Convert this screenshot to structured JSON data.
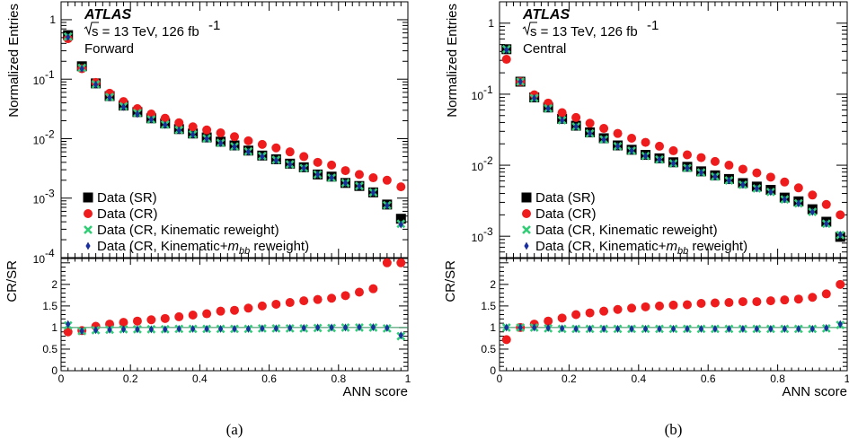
{
  "chart_data": [
    {
      "type": "scatter",
      "experiment": "ATLAS",
      "energy_label": "s = 13 TeV, 126 fb",
      "energy_sup": "-1",
      "region": "Forward",
      "caption": "(a)",
      "ylabel": "Normalized Entries",
      "ratio_ylabel": "CR/SR",
      "xlabel": "ANN score",
      "xlim": [
        0,
        1
      ],
      "ylim": [
        0.0001,
        2
      ],
      "ratio_ylim": [
        0,
        2.6
      ],
      "log_y": true,
      "legend_position": "bottom-left",
      "x_ticks": [
        "0",
        "0.2",
        "0.4",
        "0.6",
        "0.8",
        "1"
      ],
      "y_ticks": [
        "10",
        "10",
        "10",
        "10",
        "1"
      ],
      "y_tick_exps": [
        "-4",
        "-3",
        "-2",
        "-1",
        ""
      ],
      "ratio_ticks": [
        "0",
        "0.5",
        "1",
        "1.5",
        "2"
      ],
      "x": [
        0.02,
        0.06,
        0.1,
        0.14,
        0.18,
        0.22,
        0.26,
        0.3,
        0.34,
        0.38,
        0.42,
        0.46,
        0.5,
        0.54,
        0.58,
        0.62,
        0.66,
        0.7,
        0.74,
        0.78,
        0.82,
        0.86,
        0.9,
        0.94,
        0.98
      ],
      "series": [
        {
          "name": "Data (SR)",
          "marker": "square",
          "color": "#000000",
          "values": [
            0.55,
            0.165,
            0.085,
            0.052,
            0.036,
            0.028,
            0.022,
            0.018,
            0.0145,
            0.0122,
            0.0105,
            0.0089,
            0.0077,
            0.0063,
            0.0052,
            0.0045,
            0.0038,
            0.0033,
            0.0025,
            0.0023,
            0.0018,
            0.0016,
            0.00125,
            0.00078,
            0.00045
          ]
        },
        {
          "name": "Data (CR)",
          "marker": "circle",
          "color": "#ee1c1c",
          "values": [
            0.48,
            0.15,
            0.088,
            0.058,
            0.042,
            0.032,
            0.026,
            0.022,
            0.0185,
            0.0158,
            0.014,
            0.0125,
            0.0108,
            0.0092,
            0.008,
            0.007,
            0.006,
            0.005,
            0.004,
            0.0036,
            0.0029,
            0.0025,
            0.0022,
            0.002,
            0.00155
          ]
        },
        {
          "name": "Data (CR, Kinematic reweight)",
          "marker": "cross",
          "color": "#33cc77",
          "values": [
            0.52,
            0.155,
            0.082,
            0.05,
            0.035,
            0.027,
            0.021,
            0.0172,
            0.014,
            0.0118,
            0.0101,
            0.0085,
            0.0074,
            0.0061,
            0.0051,
            0.0044,
            0.0037,
            0.0032,
            0.0025,
            0.0022,
            0.0018,
            0.0016,
            0.00125,
            0.00076,
            0.00037
          ]
        },
        {
          "name": "Data (CR, Kinematic+",
          "name_math": "m",
          "name_sub": "bb",
          "name_tail": " reweight)",
          "marker": "diamond",
          "color": "#1a2f9e",
          "values": [
            0.51,
            0.15,
            0.081,
            0.049,
            0.034,
            0.026,
            0.021,
            0.017,
            0.0138,
            0.0117,
            0.01,
            0.0084,
            0.0073,
            0.006,
            0.005,
            0.0043,
            0.0037,
            0.0032,
            0.0025,
            0.0022,
            0.0018,
            0.0016,
            0.00124,
            0.00075,
            0.00036
          ]
        }
      ],
      "ratio_series": [
        {
          "name": "Data (CR)",
          "values": [
            0.9,
            0.93,
            1.03,
            1.08,
            1.12,
            1.15,
            1.18,
            1.21,
            1.25,
            1.29,
            1.32,
            1.38,
            1.4,
            1.45,
            1.5,
            1.54,
            1.58,
            1.62,
            1.65,
            1.68,
            1.74,
            1.82,
            1.9,
            2.5,
            2.5
          ]
        },
        {
          "name": "Data (CR, Kinematic reweight)",
          "values": [
            1.05,
            0.92,
            0.94,
            0.95,
            0.96,
            0.96,
            0.96,
            0.96,
            0.97,
            0.97,
            0.97,
            0.97,
            0.97,
            0.97,
            0.98,
            0.98,
            0.98,
            0.98,
            0.99,
            0.99,
            1.0,
            1.0,
            1.0,
            0.98,
            0.8
          ]
        },
        {
          "name": "Data (CR, Kinematic+mbb reweight)",
          "values": [
            1.08,
            0.92,
            0.94,
            0.95,
            0.96,
            0.96,
            0.96,
            0.96,
            0.97,
            0.97,
            0.97,
            0.97,
            0.97,
            0.97,
            0.98,
            0.98,
            0.99,
            0.99,
            1.0,
            1.0,
            1.0,
            1.01,
            1.01,
            0.99,
            0.82
          ]
        }
      ]
    },
    {
      "type": "scatter",
      "experiment": "ATLAS",
      "energy_label": "s = 13 TeV, 126 fb",
      "energy_sup": "-1",
      "region": "Central",
      "caption": "(b)",
      "ylabel": "Normalized Entries",
      "ratio_ylabel": "CR/SR",
      "xlabel": "ANN score",
      "xlim": [
        0,
        1
      ],
      "ylim": [
        0.0005,
        2
      ],
      "ratio_ylim": [
        0,
        2.6
      ],
      "log_y": true,
      "legend_position": "bottom-left",
      "x_ticks": [
        "0",
        "0.2",
        "0.4",
        "0.6",
        "0.8",
        "1"
      ],
      "y_ticks": [
        "10",
        "10",
        "10",
        "1"
      ],
      "y_tick_exps": [
        "-3",
        "-2",
        "-1",
        ""
      ],
      "ratio_ticks": [
        "0",
        "0.5",
        "1",
        "1.5",
        "2"
      ],
      "x": [
        0.02,
        0.06,
        0.1,
        0.14,
        0.18,
        0.22,
        0.26,
        0.3,
        0.34,
        0.38,
        0.42,
        0.46,
        0.5,
        0.54,
        0.58,
        0.62,
        0.66,
        0.7,
        0.74,
        0.78,
        0.82,
        0.86,
        0.9,
        0.94,
        0.98
      ],
      "series": [
        {
          "name": "Data (SR)",
          "marker": "square",
          "color": "#000000",
          "values": [
            0.43,
            0.15,
            0.09,
            0.065,
            0.045,
            0.036,
            0.029,
            0.024,
            0.019,
            0.0165,
            0.014,
            0.0125,
            0.011,
            0.0095,
            0.0082,
            0.0072,
            0.0064,
            0.0056,
            0.005,
            0.0045,
            0.0035,
            0.0031,
            0.0024,
            0.0016,
            0.00098
          ]
        },
        {
          "name": "Data (CR)",
          "marker": "circle",
          "color": "#ee1c1c",
          "values": [
            0.31,
            0.15,
            0.098,
            0.075,
            0.055,
            0.047,
            0.039,
            0.033,
            0.028,
            0.024,
            0.021,
            0.0185,
            0.016,
            0.014,
            0.0128,
            0.0113,
            0.01,
            0.0088,
            0.0078,
            0.0068,
            0.0058,
            0.0048,
            0.0038,
            0.0028,
            0.002
          ]
        },
        {
          "name": "Data (CR, Kinematic reweight)",
          "marker": "cross",
          "color": "#33cc77",
          "values": [
            0.43,
            0.15,
            0.088,
            0.063,
            0.043,
            0.035,
            0.028,
            0.023,
            0.0185,
            0.016,
            0.0135,
            0.012,
            0.0106,
            0.0091,
            0.0079,
            0.0069,
            0.0061,
            0.0053,
            0.0047,
            0.0042,
            0.0033,
            0.0029,
            0.0022,
            0.0015,
            0.00104
          ]
        },
        {
          "name": "Data (CR, Kinematic+",
          "name_math": "m",
          "name_sub": "bb",
          "name_tail": " reweight)",
          "marker": "diamond",
          "color": "#1a2f9e",
          "values": [
            0.42,
            0.15,
            0.088,
            0.063,
            0.043,
            0.035,
            0.028,
            0.023,
            0.0185,
            0.016,
            0.0135,
            0.012,
            0.0106,
            0.0091,
            0.0079,
            0.0069,
            0.0061,
            0.0053,
            0.0047,
            0.0042,
            0.0033,
            0.0029,
            0.0022,
            0.0015,
            0.00105
          ]
        }
      ],
      "ratio_series": [
        {
          "name": "Data (CR)",
          "values": [
            0.72,
            1.0,
            1.08,
            1.15,
            1.22,
            1.3,
            1.34,
            1.38,
            1.42,
            1.45,
            1.48,
            1.5,
            1.52,
            1.53,
            1.56,
            1.57,
            1.58,
            1.6,
            1.6,
            1.62,
            1.64,
            1.66,
            1.7,
            1.78,
            2.0
          ]
        },
        {
          "name": "Data (CR, Kinematic reweight)",
          "values": [
            1.0,
            1.0,
            1.0,
            0.98,
            0.97,
            0.97,
            0.97,
            0.97,
            0.97,
            0.97,
            0.97,
            0.97,
            0.97,
            0.97,
            0.97,
            0.97,
            0.97,
            0.97,
            0.97,
            0.97,
            0.97,
            0.97,
            0.97,
            0.98,
            1.06
          ]
        },
        {
          "name": "Data (CR, Kinematic+mbb reweight)",
          "values": [
            1.0,
            1.0,
            1.0,
            0.99,
            0.98,
            0.97,
            0.97,
            0.97,
            0.97,
            0.97,
            0.97,
            0.97,
            0.97,
            0.97,
            0.97,
            0.97,
            0.97,
            0.97,
            0.97,
            0.97,
            0.97,
            0.97,
            0.97,
            0.99,
            1.08
          ]
        }
      ]
    }
  ]
}
